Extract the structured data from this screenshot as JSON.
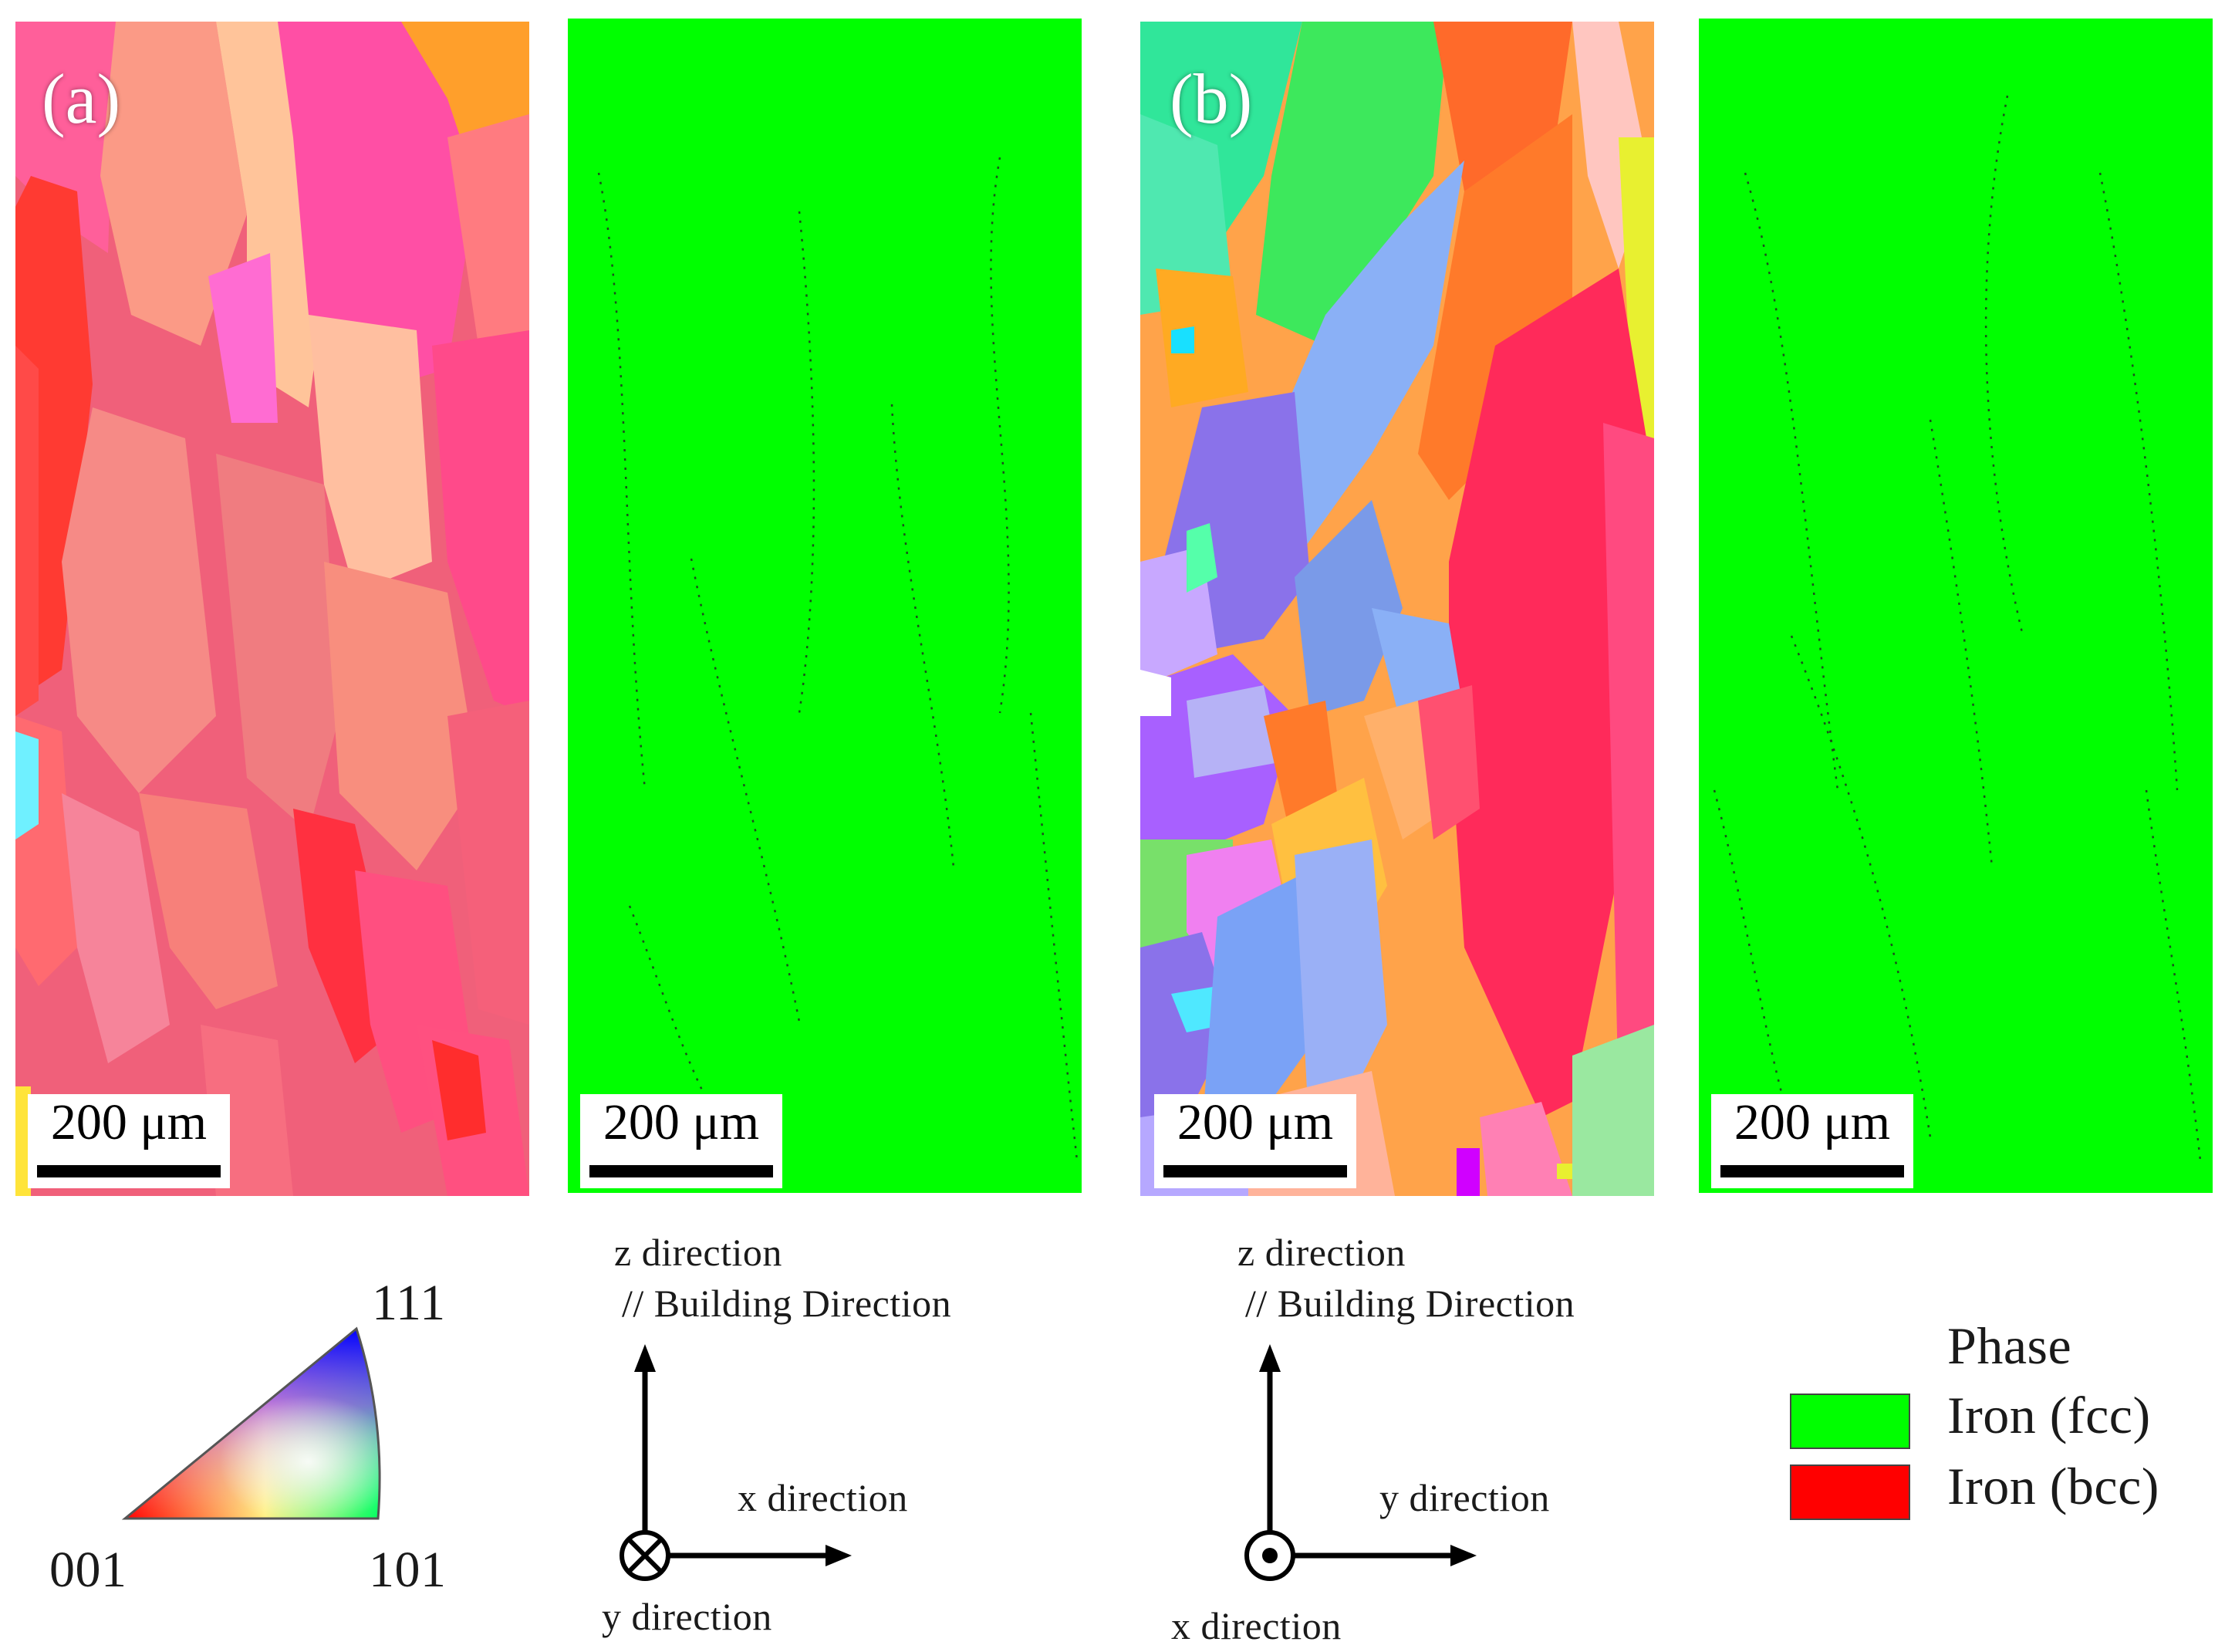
{
  "panels": {
    "a": {
      "label": "(a)"
    },
    "b": {
      "label": "(b)"
    }
  },
  "scale_bar": {
    "label": "200 μm"
  },
  "ipf_key": {
    "corner_001": "001",
    "corner_101": "101",
    "corner_111": "111"
  },
  "axes_a": {
    "z_label": "z direction",
    "bd_label": "// Building Direction",
    "horizontal_label": "x direction",
    "out_of_plane_label": "y direction",
    "out_of_plane_symbol": "into-page"
  },
  "axes_b": {
    "z_label": "z direction",
    "bd_label": "// Building Direction",
    "horizontal_label": "y direction",
    "out_of_plane_label": "x direction",
    "out_of_plane_symbol": "out-of-page"
  },
  "phase_legend": {
    "title": "Phase",
    "items": [
      {
        "label": "Iron (fcc)",
        "color": "#00ff00"
      },
      {
        "label": "Iron (bcc)",
        "color": "#ff0000"
      }
    ]
  }
}
